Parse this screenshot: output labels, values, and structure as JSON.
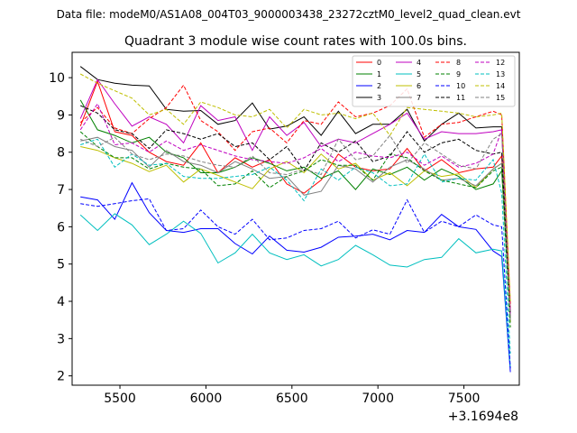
{
  "chart_data": {
    "type": "line",
    "header": "Data file: modeM0/AS1A08_004T03_9000003438_23272cztM0_level2_quad_clean.evt",
    "title": "Quadrant 3 module wise count rates with 100.0s bins.",
    "xlabel": "",
    "ylabel": "",
    "x_offset_label": "+3.1694e8",
    "xlim": [
      5222,
      7822
    ],
    "ylim": [
      1.75,
      10.68
    ],
    "x_ticks": [
      5500,
      6000,
      6500,
      7000,
      7500
    ],
    "y_ticks": [
      2,
      3,
      4,
      5,
      6,
      7,
      8,
      9,
      10
    ],
    "x": [
      5270,
      5370,
      5470,
      5570,
      5670,
      5770,
      5870,
      5970,
      6070,
      6170,
      6270,
      6370,
      6470,
      6570,
      6670,
      6770,
      6870,
      6970,
      7070,
      7170,
      7270,
      7370,
      7470,
      7570,
      7670,
      7720,
      7770
    ],
    "series": [
      {
        "name": "0",
        "color": "#ff0000",
        "dash": "solid",
        "values": [
          8.7,
          9.9,
          8.55,
          8.45,
          8.0,
          7.75,
          7.65,
          8.25,
          7.45,
          7.85,
          7.6,
          7.8,
          7.15,
          6.9,
          7.25,
          7.95,
          7.6,
          7.5,
          7.55,
          8.1,
          7.5,
          7.8,
          7.45,
          7.55,
          7.6,
          7.9,
          3.75
        ]
      },
      {
        "name": "1",
        "color": "#008000",
        "dash": "solid",
        "values": [
          9.4,
          8.6,
          8.45,
          8.25,
          8.4,
          8.0,
          7.85,
          7.45,
          7.45,
          7.6,
          7.85,
          7.7,
          7.5,
          7.6,
          7.3,
          7.5,
          7.0,
          7.55,
          7.4,
          7.6,
          7.25,
          7.55,
          7.35,
          7.0,
          7.15,
          7.5,
          3.55
        ]
      },
      {
        "name": "2",
        "color": "#0000ff",
        "dash": "solid",
        "values": [
          6.8,
          6.72,
          6.2,
          7.18,
          6.38,
          5.9,
          5.85,
          5.95,
          5.95,
          5.55,
          5.27,
          5.75,
          5.37,
          5.32,
          5.45,
          5.72,
          5.75,
          5.8,
          5.65,
          5.9,
          5.85,
          6.33,
          6.0,
          5.93,
          5.35,
          5.2,
          2.1
        ]
      },
      {
        "name": "3",
        "color": "#000000",
        "dash": "solid",
        "values": [
          10.3,
          9.95,
          9.85,
          9.8,
          9.78,
          9.15,
          9.1,
          9.12,
          8.75,
          8.85,
          9.32,
          8.62,
          8.7,
          8.95,
          8.45,
          9.1,
          8.5,
          8.75,
          8.75,
          9.15,
          8.3,
          8.75,
          9.05,
          8.65,
          8.68,
          8.68,
          3.45
        ]
      },
      {
        "name": "4",
        "color": "#bf00bf",
        "dash": "solid",
        "values": [
          8.9,
          9.95,
          9.3,
          8.7,
          8.95,
          8.75,
          8.25,
          9.25,
          8.85,
          8.95,
          8.05,
          8.95,
          8.45,
          8.8,
          8.15,
          8.35,
          8.25,
          8.5,
          8.75,
          9.05,
          8.35,
          8.55,
          8.5,
          8.5,
          8.55,
          8.6,
          3.65
        ]
      },
      {
        "name": "5",
        "color": "#00bfbf",
        "dash": "solid",
        "values": [
          6.32,
          5.9,
          6.35,
          6.05,
          5.52,
          5.8,
          6.15,
          5.82,
          5.03,
          5.3,
          5.8,
          5.3,
          5.12,
          5.25,
          4.95,
          5.12,
          5.5,
          5.25,
          4.97,
          4.92,
          5.12,
          5.18,
          5.68,
          5.3,
          5.4,
          5.35,
          2.2
        ]
      },
      {
        "name": "6",
        "color": "#bfbf00",
        "dash": "solid",
        "values": [
          8.15,
          8.05,
          7.85,
          7.7,
          7.48,
          7.65,
          7.2,
          7.55,
          7.38,
          7.2,
          7.02,
          7.55,
          7.75,
          7.45,
          7.95,
          7.55,
          7.7,
          7.25,
          7.45,
          7.1,
          7.5,
          7.35,
          7.42,
          7.05,
          7.55,
          7.7,
          3.45
        ]
      },
      {
        "name": "7",
        "color": "#808080",
        "dash": "solid",
        "values": [
          8.3,
          8.4,
          8.15,
          8.05,
          7.6,
          8.05,
          7.75,
          7.65,
          7.45,
          7.75,
          7.55,
          7.3,
          7.35,
          6.85,
          6.95,
          7.65,
          7.55,
          7.2,
          7.6,
          7.8,
          7.55,
          7.25,
          7.3,
          7.1,
          7.55,
          7.7,
          3.5
        ]
      },
      {
        "name": "8",
        "color": "#ff0000",
        "dash": "dashed",
        "values": [
          8.8,
          9.2,
          8.65,
          8.5,
          8.9,
          9.2,
          9.8,
          8.85,
          8.55,
          8.05,
          8.55,
          8.65,
          8.25,
          8.85,
          8.75,
          9.35,
          8.95,
          9.05,
          9.25,
          9.7,
          8.4,
          8.75,
          8.8,
          8.95,
          9.1,
          9.0,
          3.9
        ]
      },
      {
        "name": "9",
        "color": "#008000",
        "dash": "dashed",
        "values": [
          8.55,
          8.15,
          7.85,
          7.85,
          7.55,
          7.7,
          7.6,
          7.55,
          7.1,
          7.15,
          7.5,
          7.05,
          7.35,
          7.5,
          7.8,
          7.65,
          7.65,
          7.25,
          7.95,
          7.85,
          7.5,
          7.25,
          7.15,
          7.05,
          7.5,
          7.6,
          3.3
        ]
      },
      {
        "name": "10",
        "color": "#0000ff",
        "dash": "dashed",
        "values": [
          6.62,
          6.55,
          6.62,
          6.7,
          6.75,
          5.9,
          5.95,
          6.45,
          6.0,
          5.8,
          6.2,
          5.65,
          5.7,
          5.9,
          5.95,
          6.15,
          5.7,
          5.92,
          5.8,
          6.72,
          5.85,
          6.15,
          6.0,
          6.32,
          6.05,
          6.0,
          2.2
        ]
      },
      {
        "name": "11",
        "color": "#000000",
        "dash": "dashed",
        "values": [
          9.25,
          9.05,
          8.6,
          8.5,
          8.1,
          8.6,
          8.5,
          8.35,
          8.5,
          8.15,
          8.25,
          7.8,
          8.15,
          7.5,
          8.25,
          8.0,
          8.3,
          7.75,
          7.9,
          8.55,
          8.0,
          8.25,
          8.35,
          8.05,
          7.95,
          8.0,
          3.6
        ]
      },
      {
        "name": "12",
        "color": "#bf00bf",
        "dash": "dashed",
        "values": [
          8.6,
          9.3,
          8.2,
          8.25,
          8.0,
          8.3,
          8.05,
          8.2,
          8.05,
          7.9,
          7.8,
          7.75,
          7.7,
          7.85,
          8.1,
          7.75,
          8.0,
          7.9,
          7.85,
          8.0,
          7.65,
          7.9,
          7.6,
          7.7,
          7.95,
          8.6,
          3.6
        ]
      },
      {
        "name": "13",
        "color": "#00bfbf",
        "dash": "dashed",
        "values": [
          8.2,
          8.35,
          7.6,
          7.95,
          7.65,
          7.7,
          7.35,
          7.3,
          7.3,
          7.35,
          7.4,
          7.6,
          7.25,
          6.7,
          7.55,
          7.25,
          7.6,
          7.45,
          7.1,
          7.15,
          7.95,
          7.2,
          7.3,
          7.25,
          7.8,
          6.9,
          2.6
        ]
      },
      {
        "name": "14",
        "color": "#bfbf00",
        "dash": "dashed",
        "values": [
          10.1,
          9.85,
          9.65,
          9.45,
          9.0,
          9.15,
          8.75,
          9.35,
          9.2,
          9.0,
          8.95,
          9.15,
          8.65,
          9.15,
          9.0,
          9.05,
          8.9,
          9.05,
          8.45,
          9.2,
          9.15,
          9.1,
          9.05,
          8.95,
          9.0,
          9.05,
          4.0
        ]
      },
      {
        "name": "15",
        "color": "#808080",
        "dash": "dashed",
        "values": [
          8.35,
          8.15,
          8.4,
          7.95,
          7.8,
          7.95,
          7.9,
          7.75,
          7.65,
          7.6,
          7.9,
          7.45,
          7.4,
          7.55,
          7.4,
          8.35,
          7.8,
          7.9,
          8.45,
          7.7,
          8.25,
          7.95,
          7.65,
          7.55,
          8.35,
          8.5,
          3.55
        ]
      }
    ]
  }
}
